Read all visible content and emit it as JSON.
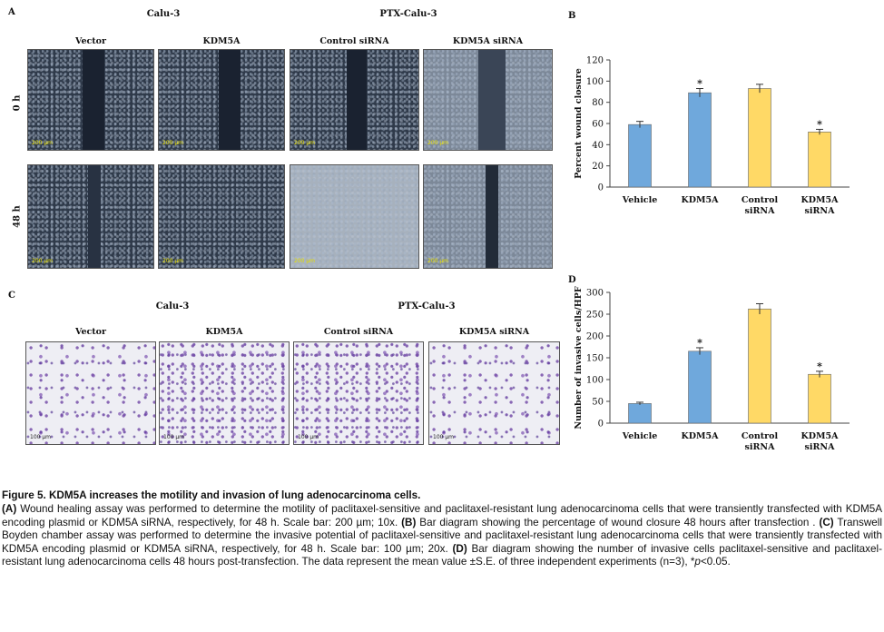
{
  "panel_labels": {
    "a": "A",
    "b": "B",
    "c": "C",
    "d": "D"
  },
  "panel_a": {
    "group_left": "Calu-3",
    "group_right": "PTX-Calu-3",
    "columns": [
      "Vector",
      "KDM5A",
      "Control siRNA",
      "KDM5A siRNA"
    ],
    "rows": [
      "0 h",
      "48 h"
    ],
    "scale_text": "200 µm"
  },
  "panel_c": {
    "group_left": "Calu-3",
    "group_right": "PTX-Calu-3",
    "columns": [
      "Vector",
      "KDM5A",
      "Control siRNA",
      "KDM5A siRNA"
    ],
    "scale_text": "100 µm"
  },
  "chart_data": [
    {
      "id": "B",
      "type": "bar",
      "categories": [
        "Vehicle",
        "KDM5A",
        "Control siRNA",
        "KDM5A siRNA"
      ],
      "category_lines": [
        [
          "Vehicle"
        ],
        [
          "KDM5A"
        ],
        [
          "Control",
          "siRNA"
        ],
        [
          "KDM5A",
          "siRNA"
        ]
      ],
      "values": [
        59,
        89,
        93,
        52
      ],
      "errors": [
        3,
        4,
        4,
        2.5
      ],
      "significant": [
        false,
        true,
        false,
        true
      ],
      "significance_mark": "*",
      "colors": [
        "#6fa8dc",
        "#6fa8dc",
        "#ffd966",
        "#ffd966"
      ],
      "ylabel": "Percent wound closure",
      "ylim": [
        0,
        120
      ],
      "yticks": [
        0,
        20,
        40,
        60,
        80,
        100,
        120
      ],
      "grid": false
    },
    {
      "id": "D",
      "type": "bar",
      "categories": [
        "Vehicle",
        "KDM5A",
        "Control siRNA",
        "KDM5A siRNA"
      ],
      "category_lines": [
        [
          "Vehicle"
        ],
        [
          "KDM5A"
        ],
        [
          "Control",
          "siRNA"
        ],
        [
          "KDM5A",
          "siRNA"
        ]
      ],
      "values": [
        45,
        165,
        262,
        112
      ],
      "errors": [
        3,
        8,
        12,
        7
      ],
      "significant": [
        false,
        true,
        false,
        true
      ],
      "significance_mark": "*",
      "colors": [
        "#6fa8dc",
        "#6fa8dc",
        "#ffd966",
        "#ffd966"
      ],
      "ylabel": "Number of invasive cells/HPF",
      "ylim": [
        0,
        300
      ],
      "yticks": [
        0,
        50,
        100,
        150,
        200,
        250,
        300
      ],
      "grid": false
    }
  ],
  "caption": {
    "title": "Figure 5. KDM5A increases the motility and invasion of lung adenocarcinoma cells.",
    "body": [
      {
        "label": "(A)",
        "text": " Wound healing assay was performed to determine the motility of paclitaxel-sensitive and paclitaxel-resistant lung adenocarcinoma cells that were transiently transfected with KDM5A encoding plasmid or KDM5A siRNA, respectively, for 48 h. Scale bar: 200 µm; 10x. "
      },
      {
        "label": "(B)",
        "text": " Bar diagram showing the percentage of wound closure 48 hours after transfection . "
      },
      {
        "label": "(C)",
        "text": " Transwell Boyden chamber assay was performed to determine the invasive potential of paclitaxel-sensitive and paclitaxel-resistant lung adenocarcinoma cells that were transiently transfected with KDM5A encoding plasmid or KDM5A siRNA, respectively, for 48 h. Scale bar: 100 µm; 20x. "
      },
      {
        "label": "(D)",
        "text": " Bar diagram showing the number of invasive cells paclitaxel-sensitive and paclitaxel-resistant lung adenocarcinoma cells 48 hours post-transfection. The data represent the mean value ±S.E. of three independent experiments (n=3), *"
      }
    ],
    "p_italic": "p",
    "p_tail": "<0.05."
  }
}
